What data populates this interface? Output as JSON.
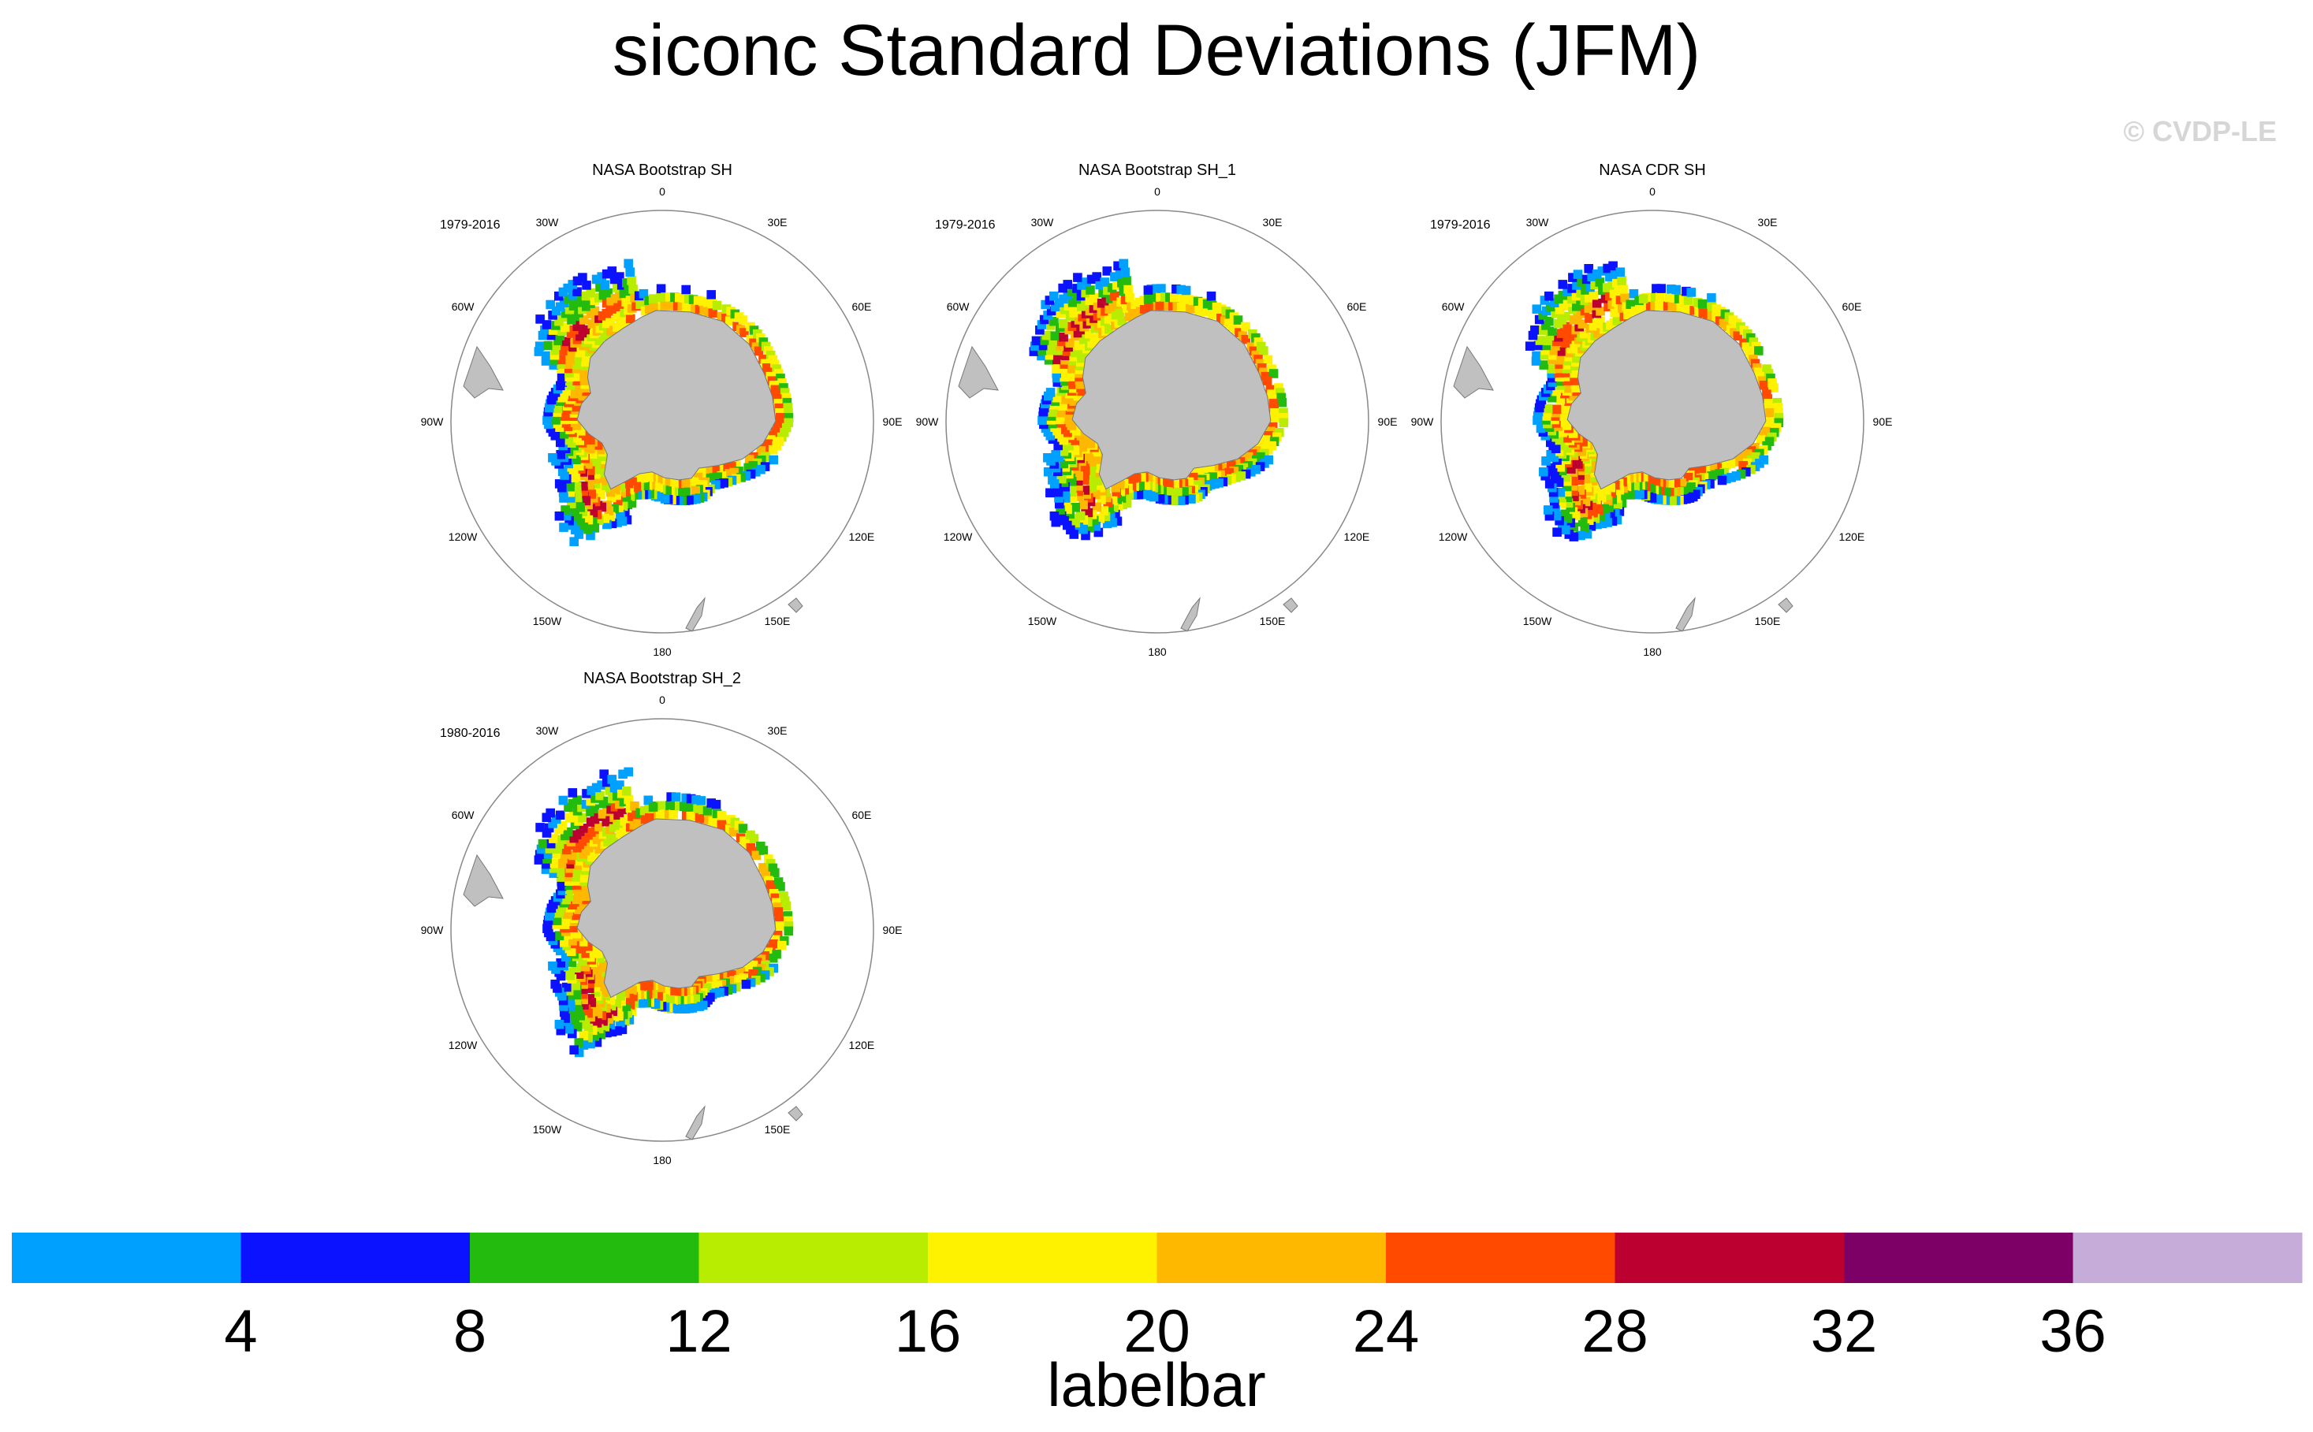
{
  "title": "siconc Standard Deviations (JFM)",
  "copyright": "© CVDP-LE",
  "labelbar": {
    "title": "labelbar",
    "ticks": [
      "4",
      "8",
      "12",
      "16",
      "20",
      "24",
      "28",
      "32",
      "36"
    ]
  },
  "chart_data": {
    "type": "heatmap",
    "projection": "south polar stereographic",
    "variable": "siconc",
    "season": "JFM",
    "title": "siconc Standard Deviations (JFM)",
    "longitude_labels": [
      "0",
      "30E",
      "60E",
      "90E",
      "120E",
      "150E",
      "180",
      "150W",
      "120W",
      "90W",
      "60W",
      "30W"
    ],
    "panels": [
      {
        "title": "NASA Bootstrap SH",
        "years": "1979-2016"
      },
      {
        "title": "NASA Bootstrap SH_1",
        "years": "1979-2016"
      },
      {
        "title": "NASA CDR SH",
        "years": "1979-2016"
      },
      {
        "title": "NASA Bootstrap SH_2",
        "years": "1980-2016"
      }
    ],
    "colorbar": {
      "levels": [
        4,
        8,
        12,
        16,
        20,
        24,
        28,
        32,
        36
      ],
      "colors": [
        "#00a0ff",
        "#0a12ff",
        "#22bb0e",
        "#b8ec00",
        "#fff200",
        "#ffb800",
        "#ff4a00",
        "#bc0030",
        "#7d0066",
        "#c6acd8"
      ]
    }
  }
}
